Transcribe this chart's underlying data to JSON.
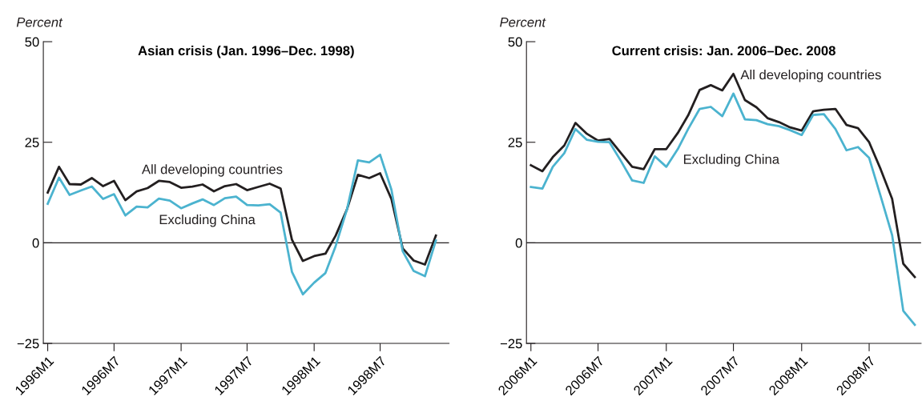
{
  "chart_data": [
    {
      "type": "line",
      "title": "Asian crisis (Jan. 1996–Dec. 1998)",
      "ylabel": "Percent",
      "x": [
        "1996-01",
        "1996-02",
        "1996-03",
        "1996-04",
        "1996-05",
        "1996-06",
        "1996-07",
        "1996-08",
        "1996-09",
        "1996-10",
        "1996-11",
        "1996-12",
        "1997-01",
        "1997-02",
        "1997-03",
        "1997-04",
        "1997-05",
        "1997-06",
        "1997-07",
        "1997-08",
        "1997-09",
        "1997-10",
        "1997-11",
        "1997-12",
        "1998-01",
        "1998-02",
        "1998-03",
        "1998-04",
        "1998-05",
        "1998-06",
        "1998-07",
        "1998-08",
        "1998-09",
        "1998-10",
        "1998-11",
        "1998-12"
      ],
      "xlim": [
        "1995-12-20",
        "1999-01-06"
      ],
      "xticks": [
        {
          "value": "1996-01",
          "label": "1996M1"
        },
        {
          "value": "1996-07",
          "label": "1996M7"
        },
        {
          "value": "1997-01",
          "label": "1997M1"
        },
        {
          "value": "1997-07",
          "label": "1997M7"
        },
        {
          "value": "1998-01",
          "label": "1998M1"
        },
        {
          "value": "1998-07",
          "label": "1998M7"
        }
      ],
      "ylim": [
        -25,
        50
      ],
      "yticks": [
        {
          "value": -25,
          "label": "−25"
        },
        0,
        25,
        50
      ],
      "grid": false,
      "legend": false,
      "marker": "none",
      "line_style": "solid",
      "ref_lines": [
        {
          "axis": "y",
          "value": 0,
          "color": "#231f20"
        }
      ],
      "series": [
        {
          "name": "All developing countries",
          "color": "#231f20",
          "values": [
            12.5,
            18.9,
            14.6,
            14.5,
            16.1,
            14.1,
            15.4,
            10.6,
            12.8,
            13.6,
            15.4,
            15.1,
            13.7,
            14.0,
            14.5,
            12.8,
            14.1,
            14.6,
            13.1,
            13.9,
            14.7,
            13.5,
            0.8,
            -4.5,
            -3.3,
            -2.7,
            1.8,
            8.3,
            16.9,
            16.1,
            17.3,
            10.9,
            -1.4,
            -4.4,
            -5.4,
            1.8
          ]
        },
        {
          "name": "Excluding China",
          "color": "#4bb3cf",
          "values": [
            9.7,
            16.2,
            11.9,
            13.0,
            14.0,
            10.9,
            12.1,
            6.8,
            9.0,
            8.8,
            11.0,
            10.5,
            8.6,
            9.8,
            10.8,
            9.4,
            11.1,
            11.5,
            9.4,
            9.3,
            9.6,
            7.5,
            -7.2,
            -12.8,
            -9.9,
            -7.5,
            -0.8,
            8.3,
            20.5,
            20.0,
            21.9,
            13.2,
            -2.1,
            -7.0,
            -8.3,
            0.6
          ]
        }
      ]
    },
    {
      "type": "line",
      "title": "Current crisis: Jan. 2006–Dec. 2008",
      "ylabel": "Percent",
      "x": [
        "2006-01",
        "2006-02",
        "2006-03",
        "2006-04",
        "2006-05",
        "2006-06",
        "2006-07",
        "2006-08",
        "2006-09",
        "2006-10",
        "2006-11",
        "2006-12",
        "2007-01",
        "2007-02",
        "2007-03",
        "2007-04",
        "2007-05",
        "2007-06",
        "2007-07",
        "2007-08",
        "2007-09",
        "2007-10",
        "2007-11",
        "2007-12",
        "2008-01",
        "2008-02",
        "2008-03",
        "2008-04",
        "2008-05",
        "2008-06",
        "2008-07",
        "2008-08",
        "2008-09",
        "2008-10",
        "2008-11"
      ],
      "xlim": [
        "2005-12-20",
        "2008-11-18"
      ],
      "xticks": [
        {
          "value": "2006-01",
          "label": "2006M1"
        },
        {
          "value": "2006-07",
          "label": "2006M7"
        },
        {
          "value": "2007-01",
          "label": "2007M1"
        },
        {
          "value": "2007-07",
          "label": "2007M7"
        },
        {
          "value": "2008-01",
          "label": "2008M1"
        },
        {
          "value": "2008-07",
          "label": "2008M7"
        }
      ],
      "ylim": [
        -25,
        50
      ],
      "yticks": [
        {
          "value": -25,
          "label": "−25"
        },
        0,
        25,
        50
      ],
      "grid": false,
      "legend": false,
      "marker": "none",
      "line_style": "solid",
      "ref_lines": [
        {
          "axis": "y",
          "value": 0,
          "color": "#231f20"
        }
      ],
      "series": [
        {
          "name": "All developing countries",
          "color": "#231f20",
          "values": [
            19.3,
            17.8,
            21.3,
            24.2,
            29.8,
            27.1,
            25.4,
            25.8,
            22.3,
            18.9,
            18.3,
            23.3,
            23.3,
            27.3,
            31.7,
            38.0,
            39.2,
            37.9,
            42.0,
            35.5,
            33.7,
            31.0,
            30.0,
            28.7,
            27.9,
            32.7,
            33.1,
            33.3,
            29.3,
            28.5,
            25.0,
            18.3,
            10.9,
            -5.2,
            -8.5
          ]
        },
        {
          "name": "Excluding China",
          "color": "#4bb3cf",
          "values": [
            13.9,
            13.5,
            18.9,
            22.3,
            28.3,
            25.6,
            25.1,
            25.0,
            20.3,
            15.5,
            14.9,
            21.5,
            18.9,
            23.3,
            28.3,
            33.3,
            33.8,
            31.5,
            37.1,
            30.7,
            30.5,
            29.5,
            29.0,
            28.0,
            26.8,
            31.8,
            32.0,
            28.3,
            23.0,
            23.8,
            21.1,
            11.6,
            1.9,
            -16.9,
            -20.4
          ]
        }
      ]
    }
  ]
}
